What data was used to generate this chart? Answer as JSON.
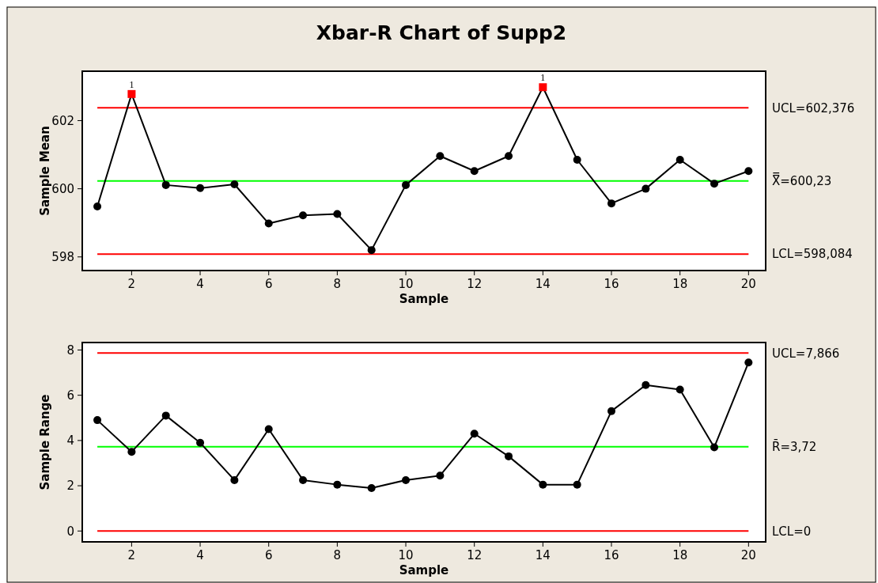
{
  "chart_data": [
    {
      "type": "line",
      "title": "Xbar-R Chart of Supp2",
      "xlabel": "Sample",
      "ylabel": "Sample Mean",
      "x": [
        1,
        2,
        3,
        4,
        5,
        6,
        7,
        8,
        9,
        10,
        11,
        12,
        13,
        14,
        15,
        16,
        17,
        18,
        19,
        20
      ],
      "xlim": [
        0.56,
        20.5
      ],
      "xticks": [
        2,
        4,
        6,
        8,
        10,
        12,
        14,
        16,
        18,
        20
      ],
      "ylim": [
        597.6,
        603.45
      ],
      "yticks": [
        598,
        600,
        602
      ],
      "grid": false,
      "series": [
        {
          "color": "#000000",
          "marker": "none",
          "values": [
            599.48,
            602.78,
            600.11,
            600.02,
            600.13,
            598.98,
            599.22,
            599.26,
            598.2,
            600.11,
            600.96,
            600.52,
            600.96,
            602.98,
            600.85,
            599.57,
            600.0,
            600.85,
            600.15,
            600.52
          ]
        },
        {
          "type": "scatter",
          "color": "#000000",
          "marker": "circle",
          "values": [
            599.48,
            null,
            600.11,
            600.02,
            600.13,
            598.98,
            599.22,
            599.26,
            598.2,
            600.11,
            600.96,
            600.52,
            600.96,
            null,
            600.85,
            599.57,
            600.0,
            600.85,
            600.15,
            600.52
          ]
        },
        {
          "type": "scatter",
          "color": "#ff0000",
          "marker": "square",
          "values": [
            null,
            602.78,
            null,
            null,
            null,
            null,
            null,
            null,
            null,
            null,
            null,
            null,
            null,
            602.98,
            null,
            null,
            null,
            null,
            null,
            null
          ]
        }
      ],
      "ref_lines": [
        {
          "axis": "y",
          "value": 602.376,
          "label": "UCL=602,376",
          "color": "#ff0000"
        },
        {
          "axis": "y",
          "value": 600.23,
          "label": "X̿=600,23",
          "color": "#00ff00"
        },
        {
          "axis": "y",
          "value": 598.084,
          "label": "LCL=598,084",
          "color": "#ff0000"
        }
      ],
      "annotations": [
        {
          "text": "1",
          "x": 2,
          "y": 602.78
        },
        {
          "text": "1",
          "x": 14,
          "y": 602.98
        }
      ]
    },
    {
      "type": "line",
      "xlabel": "Sample",
      "ylabel": "Sample Range",
      "x": [
        1,
        2,
        3,
        4,
        5,
        6,
        7,
        8,
        9,
        10,
        11,
        12,
        13,
        14,
        15,
        16,
        17,
        18,
        19,
        20
      ],
      "xlim": [
        0.56,
        20.5
      ],
      "xticks": [
        2,
        4,
        6,
        8,
        10,
        12,
        14,
        16,
        18,
        20
      ],
      "ylim": [
        -0.48,
        8.33
      ],
      "yticks": [
        0,
        2,
        4,
        6,
        8
      ],
      "grid": false,
      "marker": "circle",
      "series": [
        {
          "color": "#000000",
          "values": [
            4.9,
            3.5,
            5.1,
            3.9,
            2.25,
            4.5,
            2.25,
            2.05,
            1.9,
            2.25,
            2.45,
            4.3,
            3.3,
            2.05,
            2.05,
            5.3,
            6.45,
            6.25,
            3.7,
            7.45
          ]
        }
      ],
      "ref_lines": [
        {
          "axis": "y",
          "value": 7.866,
          "label": "UCL=7,866",
          "color": "#ff0000"
        },
        {
          "axis": "y",
          "value": 3.72,
          "label": "R̄=3,72",
          "color": "#00ff00"
        },
        {
          "axis": "y",
          "value": 0,
          "label": "LCL=0",
          "color": "#ff0000"
        }
      ]
    }
  ]
}
